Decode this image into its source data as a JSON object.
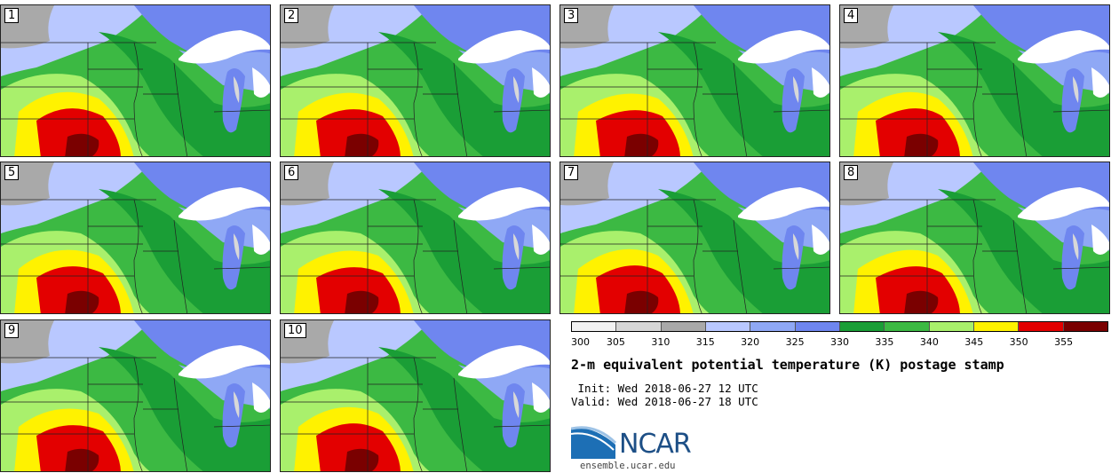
{
  "panels": [
    {
      "label": "1"
    },
    {
      "label": "2"
    },
    {
      "label": "3"
    },
    {
      "label": "4"
    },
    {
      "label": "5"
    },
    {
      "label": "6"
    },
    {
      "label": "7"
    },
    {
      "label": "8"
    },
    {
      "label": "9"
    },
    {
      "label": "10"
    }
  ],
  "colorbar": {
    "ticks": [
      "300",
      "305",
      "310",
      "315",
      "320",
      "325",
      "330",
      "335",
      "340",
      "345",
      "350",
      "355"
    ],
    "colors": [
      "#f2f2f2",
      "#d6d6d6",
      "#a9a9a9",
      "#b9c8ff",
      "#8fa8f5",
      "#6f86ef",
      "#1a9e36",
      "#3cb943",
      "#a9f06c",
      "#fff200",
      "#e30000",
      "#7a0000"
    ]
  },
  "title": "2-m equivalent potential temperature (K) postage stamp",
  "init": " Init: Wed 2018-06-27 12 UTC",
  "valid": "Valid: Wed 2018-06-27 18 UTC",
  "logo": {
    "name": "NCAR",
    "url": "ensemble.ucar.edu"
  }
}
